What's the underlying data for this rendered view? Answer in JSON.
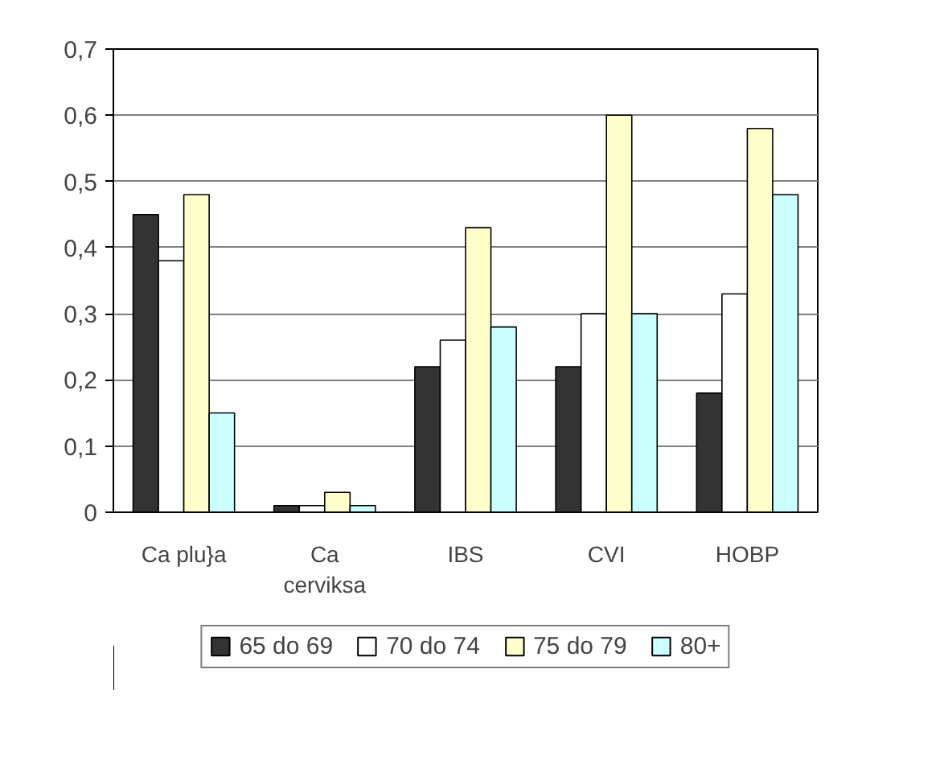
{
  "chart_data": {
    "type": "bar",
    "categories": [
      "Ca plu}a",
      "Ca cerviksa",
      "IBS",
      "CVI",
      "HOBP"
    ],
    "series": [
      {
        "name": "65 do 69",
        "color": "#333333",
        "values": [
          0.45,
          0.01,
          0.22,
          0.22,
          0.18
        ]
      },
      {
        "name": "70 do 74",
        "color": "#ffffff",
        "values": [
          0.38,
          0.01,
          0.26,
          0.3,
          0.33
        ]
      },
      {
        "name": "75 do 79",
        "color": "#ffffcc",
        "values": [
          0.48,
          0.03,
          0.43,
          0.6,
          0.58
        ]
      },
      {
        "name": "80+",
        "color": "#ccffff",
        "values": [
          0.15,
          0.01,
          0.28,
          0.3,
          0.48
        ]
      }
    ],
    "ylim": [
      0,
      0.7
    ],
    "yticks": [
      0,
      {
        "value": 0.1,
        "label": "0,1"
      },
      {
        "value": 0.2,
        "label": "0,2"
      },
      {
        "value": 0.3,
        "label": "0,3"
      },
      {
        "value": 0.4,
        "label": "0,4"
      },
      {
        "value": 0.5,
        "label": "0,5"
      },
      {
        "value": 0.6,
        "label": "0,6"
      },
      {
        "value": 0.7,
        "label": "0,7"
      }
    ],
    "grid": "y",
    "legend": "bottom"
  }
}
